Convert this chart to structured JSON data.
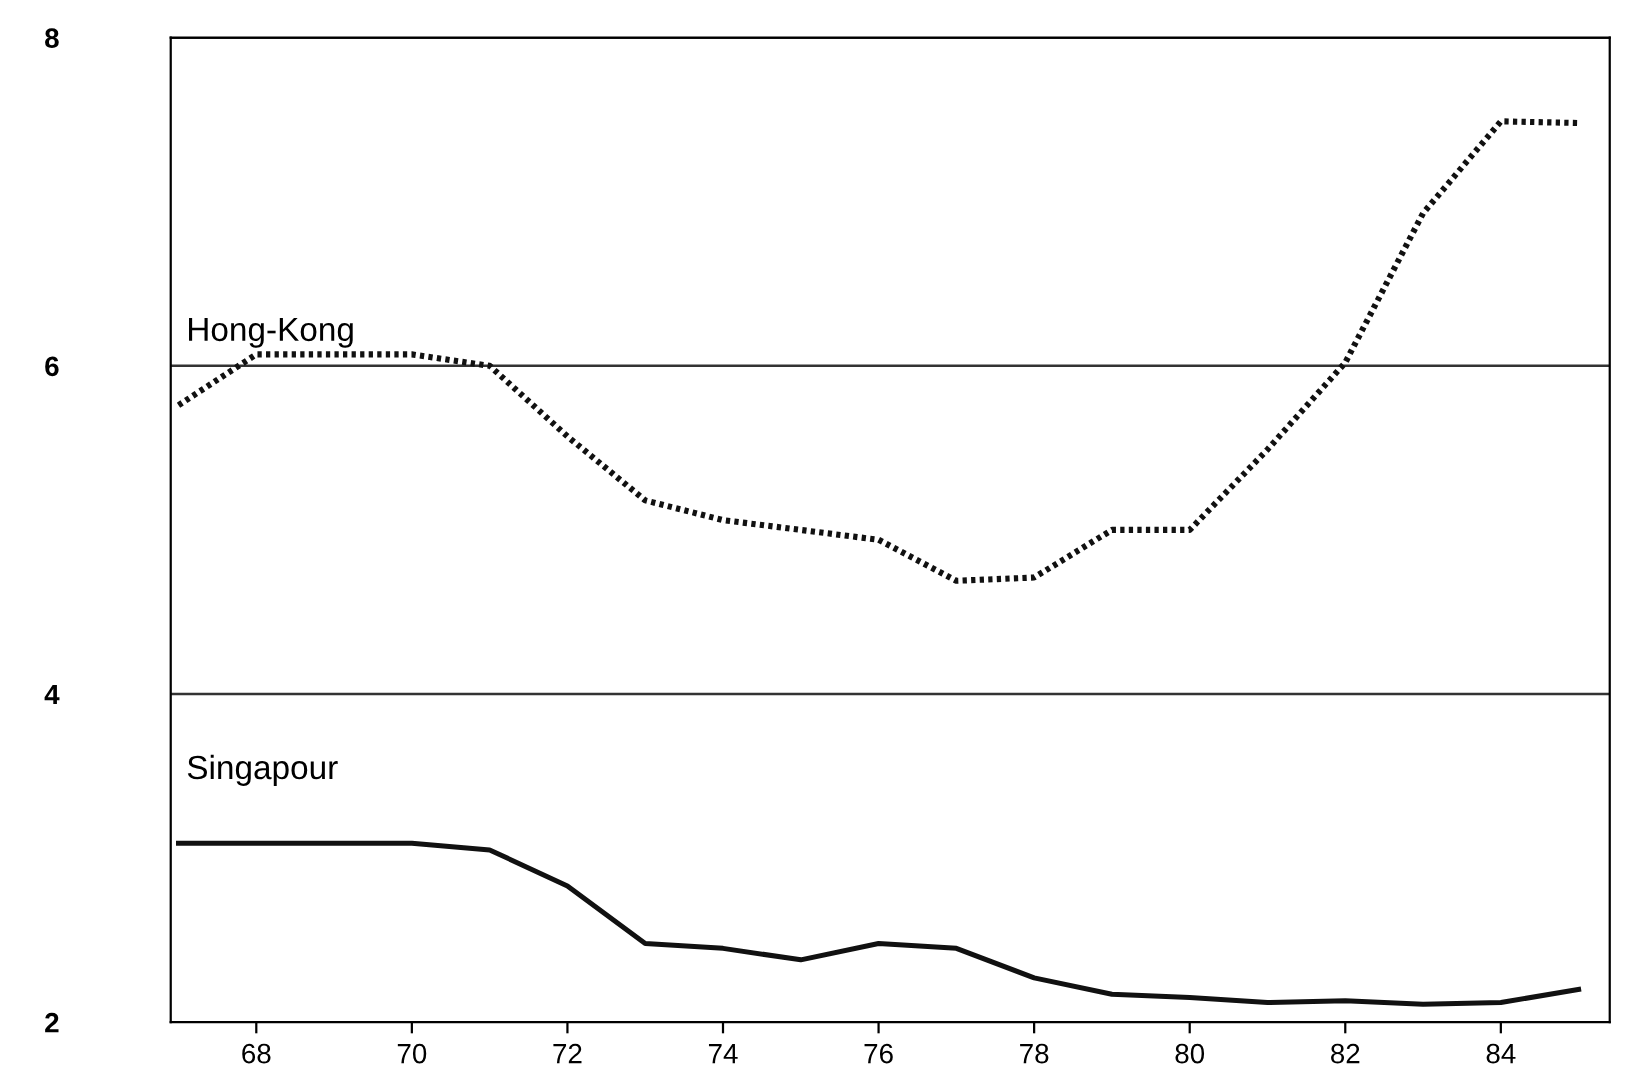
{
  "chart_data": {
    "type": "line",
    "x": [
      67,
      68,
      69,
      70,
      71,
      72,
      73,
      74,
      75,
      76,
      77,
      78,
      79,
      80,
      81,
      82,
      83,
      84,
      85
    ],
    "series": [
      {
        "name": "Hong-Kong",
        "color": "#111111",
        "line_style": "dotted",
        "values": [
          5.76,
          6.07,
          6.07,
          6.07,
          6.0,
          5.57,
          5.18,
          5.06,
          5.0,
          4.94,
          4.69,
          4.71,
          5.0,
          5.0,
          5.49,
          6.02,
          6.93,
          7.49,
          7.48
        ]
      },
      {
        "name": "Singapour",
        "color": "#111111",
        "line_style": "solid",
        "values": [
          3.09,
          3.09,
          3.09,
          3.09,
          3.05,
          2.83,
          2.48,
          2.45,
          2.38,
          2.48,
          2.45,
          2.27,
          2.17,
          2.15,
          2.12,
          2.13,
          2.11,
          2.12,
          2.2
        ]
      }
    ],
    "xlim": [
      66.9,
      85.4
    ],
    "xticks": [
      68,
      70,
      72,
      74,
      76,
      78,
      80,
      82,
      84
    ],
    "ylim": [
      2,
      8
    ],
    "yticks": [
      2,
      4,
      6,
      8
    ],
    "grid": "y",
    "legend": false
  }
}
